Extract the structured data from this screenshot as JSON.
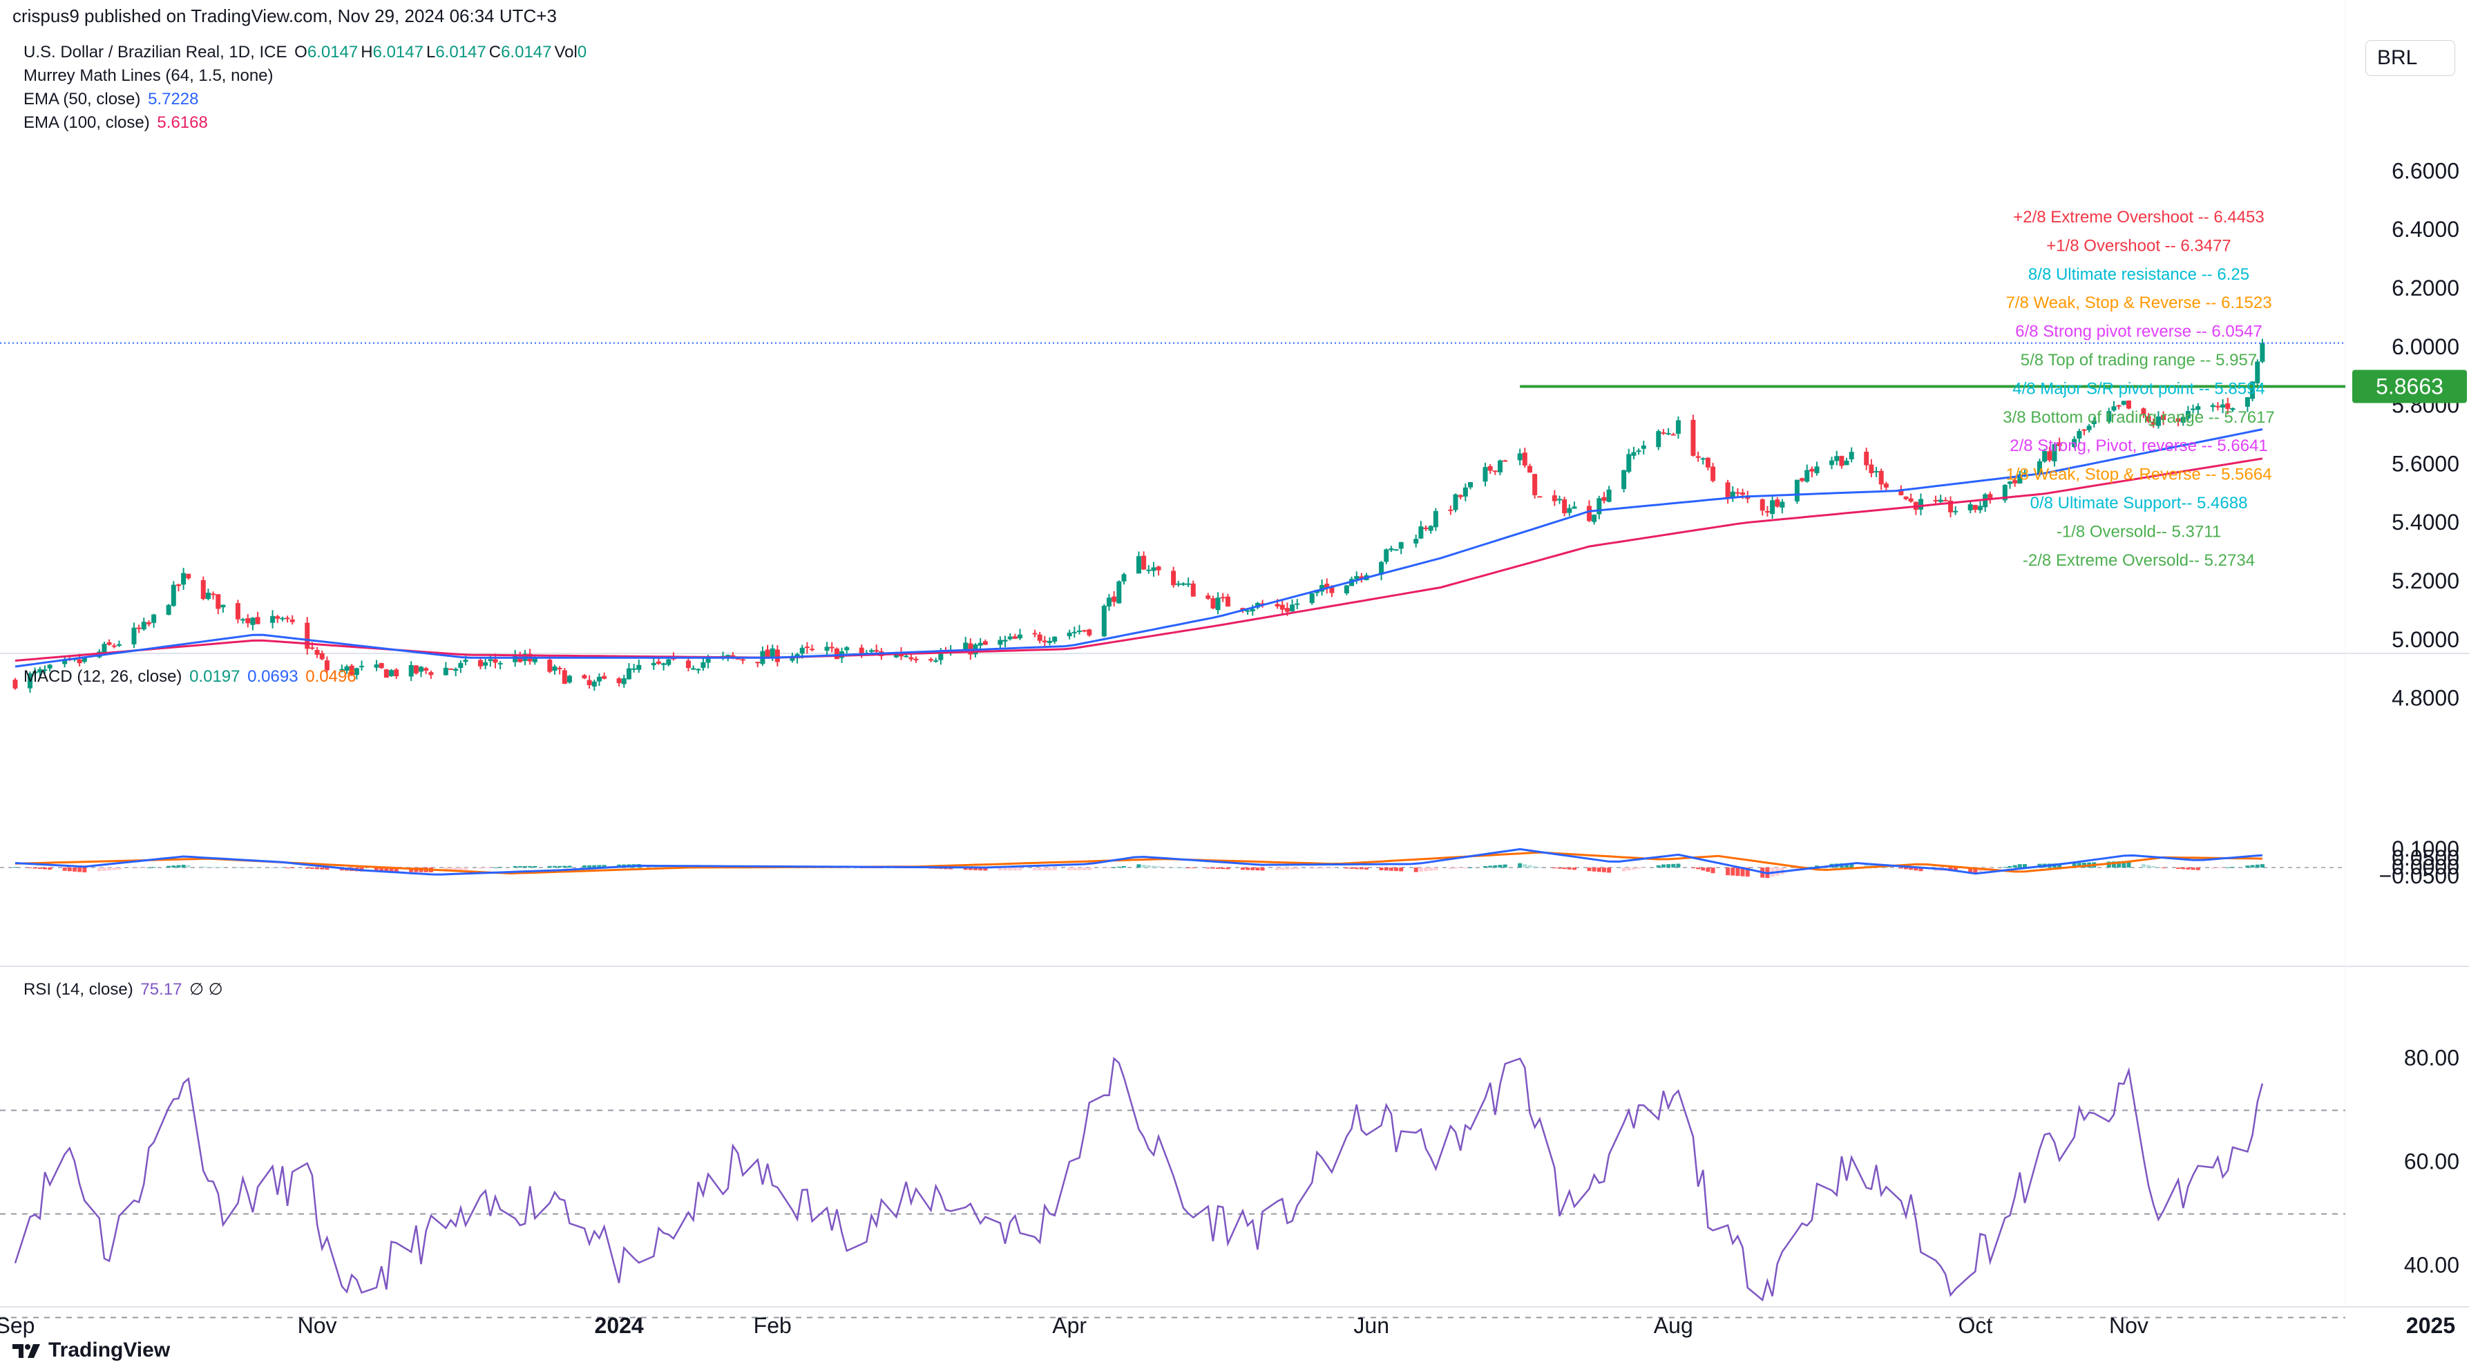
{
  "header": {
    "published": "crispus9 published on TradingView.com, Nov 29, 2024 06:34 UTC+3"
  },
  "brand": {
    "name": "TradingView",
    "icon": "tradingview-logo-icon"
  },
  "currency_button": {
    "label": "BRL"
  },
  "legend": {
    "symbol": "U.S. Dollar / Brazilian Real, 1D, ICE",
    "ohlc": [
      {
        "k": "O",
        "v": "6.0147"
      },
      {
        "k": "H",
        "v": "6.0147"
      },
      {
        "k": "L",
        "v": "6.0147"
      },
      {
        "k": "C",
        "v": "6.0147"
      },
      {
        "k": "Vol",
        "v": "0"
      }
    ],
    "murrey": "Murrey Math Lines (64, 1.5, none)",
    "ema50_label": "EMA (50, close)",
    "ema50_value": "5.7228",
    "ema100_label": "EMA (100, close)",
    "ema100_value": "5.6168",
    "macd_label": "MACD (12, 26, close)",
    "macd_values": [
      "0.0197",
      "0.0693",
      "0.0496"
    ],
    "rsi_label": "RSI (14, close)",
    "rsi_value": "75.17",
    "rsi_extra": "∅  ∅"
  },
  "colors": {
    "up": "#089981",
    "down": "#f23645",
    "ema50": "#2962ff",
    "ema100": "#e91e63",
    "macd": "#2962ff",
    "signal": "#ff6d00",
    "rsi": "#7e57c2",
    "resistance": "#089981",
    "green_line": "#2e9e3a"
  },
  "chart_data": [
    {
      "type": "candlestick",
      "title": "U.S. Dollar / Brazilian Real, 1D, ICE",
      "x_tick_labels": [
        "Sep",
        "Nov",
        "2024",
        "Feb",
        "Apr",
        "Jun",
        "Aug",
        "Oct",
        "Nov",
        "2025",
        "Feb"
      ],
      "x_tick_dates": [
        "2023-09-01",
        "2023-11-01",
        "2024-01-01",
        "2024-02-01",
        "2024-04-01",
        "2024-06-01",
        "2024-08-01",
        "2024-10-01",
        "2024-11-01",
        "2025-01-01",
        "2025-02-01"
      ],
      "y_tick_labels": [
        "4.8000",
        "5.0000",
        "5.2000",
        "5.4000",
        "5.6000",
        "5.8000",
        "6.0000",
        "6.2000",
        "6.4000",
        "6.6000"
      ],
      "ylim": [
        4.7,
        6.66
      ],
      "last_price": "5.8663",
      "close_path": [
        [
          "2023-09-01",
          4.86
        ],
        [
          "2023-09-15",
          4.93
        ],
        [
          "2023-09-28",
          5.05
        ],
        [
          "2023-10-05",
          5.21
        ],
        [
          "2023-10-15",
          5.09
        ],
        [
          "2023-10-27",
          5.05
        ],
        [
          "2023-11-03",
          4.9
        ],
        [
          "2023-11-20",
          4.89
        ],
        [
          "2023-12-01",
          4.91
        ],
        [
          "2023-12-12",
          4.94
        ],
        [
          "2023-12-26",
          4.84
        ],
        [
          "2024-01-05",
          4.9
        ],
        [
          "2024-01-20",
          4.93
        ],
        [
          "2024-02-10",
          4.96
        ],
        [
          "2024-03-05",
          4.95
        ],
        [
          "2024-03-25",
          5.01
        ],
        [
          "2024-04-05",
          5.04
        ],
        [
          "2024-04-15",
          5.27
        ],
        [
          "2024-04-30",
          5.13
        ],
        [
          "2024-05-15",
          5.11
        ],
        [
          "2024-05-31",
          5.24
        ],
        [
          "2024-06-15",
          5.43
        ],
        [
          "2024-06-30",
          5.66
        ],
        [
          "2024-07-05",
          5.48
        ],
        [
          "2024-07-15",
          5.43
        ],
        [
          "2024-07-25",
          5.66
        ],
        [
          "2024-08-02",
          5.73
        ],
        [
          "2024-08-10",
          5.52
        ],
        [
          "2024-08-20",
          5.45
        ],
        [
          "2024-08-31",
          5.62
        ],
        [
          "2024-09-07",
          5.62
        ],
        [
          "2024-09-18",
          5.47
        ],
        [
          "2024-09-30",
          5.44
        ],
        [
          "2024-10-07",
          5.53
        ],
        [
          "2024-10-20",
          5.68
        ],
        [
          "2024-10-31",
          5.8
        ],
        [
          "2024-11-05",
          5.74
        ],
        [
          "2024-11-15",
          5.78
        ],
        [
          "2024-11-25",
          5.82
        ],
        [
          "2024-11-28",
          6.01
        ]
      ],
      "ema_50_path": [
        [
          "2023-09-01",
          4.91
        ],
        [
          "2023-10-20",
          5.02
        ],
        [
          "2023-12-01",
          4.94
        ],
        [
          "2024-02-01",
          4.94
        ],
        [
          "2024-04-01",
          4.98
        ],
        [
          "2024-05-01",
          5.08
        ],
        [
          "2024-06-15",
          5.28
        ],
        [
          "2024-07-15",
          5.44
        ],
        [
          "2024-08-15",
          5.49
        ],
        [
          "2024-09-15",
          5.51
        ],
        [
          "2024-10-15",
          5.57
        ],
        [
          "2024-11-28",
          5.72
        ]
      ],
      "ema_100_path": [
        [
          "2023-09-01",
          4.93
        ],
        [
          "2023-10-20",
          5.0
        ],
        [
          "2023-12-01",
          4.95
        ],
        [
          "2024-02-01",
          4.94
        ],
        [
          "2024-04-01",
          4.97
        ],
        [
          "2024-05-01",
          5.05
        ],
        [
          "2024-06-15",
          5.18
        ],
        [
          "2024-07-15",
          5.32
        ],
        [
          "2024-08-15",
          5.4
        ],
        [
          "2024-09-15",
          5.45
        ],
        [
          "2024-10-15",
          5.5
        ],
        [
          "2024-11-28",
          5.62
        ]
      ],
      "horizontal_line": {
        "value": 5.8663,
        "from": "2024-07-01",
        "to": "2024-12-31"
      },
      "murrey_levels": [
        {
          "label": "+2/8 Extreme Overshoot --",
          "value": "6.4453",
          "color": "#f23645"
        },
        {
          "label": "+1/8 Overshoot --",
          "value": "6.3477",
          "color": "#f23645"
        },
        {
          "label": "8/8 Ultimate resistance --",
          "value": "6.25",
          "color": "#00bcd4"
        },
        {
          "label": "7/8 Weak, Stop & Reverse --",
          "value": "6.1523",
          "color": "#ff9800"
        },
        {
          "label": "6/8 Strong pivot reverse --",
          "value": "6.0547",
          "color": "#e040fb"
        },
        {
          "label": "5/8 Top of trading range --",
          "value": "5.957",
          "color": "#4caf50"
        },
        {
          "label": "4/8 Major S/R pivot point --",
          "value": "5.8594",
          "color": "#00bcd4"
        },
        {
          "label": "3/8 Bottom of trading range --",
          "value": "5.7617",
          "color": "#4caf50"
        },
        {
          "label": "2/8 Strong, Pivot, reverse --",
          "value": "5.6641",
          "color": "#e040fb"
        },
        {
          "label": "1/8 Weak, Stop & Reverse --",
          "value": "5.5664",
          "color": "#ff9800"
        },
        {
          "label": "0/8 Ultimate Support--",
          "value": "5.4688",
          "color": "#00bcd4"
        },
        {
          "label": "-1/8 Oversold--",
          "value": "5.3711",
          "color": "#4caf50"
        },
        {
          "label": "-2/8 Extreme Oversold--",
          "value": "5.2734",
          "color": "#4caf50"
        }
      ]
    },
    {
      "type": "line",
      "title": "MACD (12, 26, close)",
      "y_tick_labels": [
        "0.1000",
        "0.0500",
        "0.0000",
        "−0.0500"
      ],
      "ylim": [
        -0.052,
        0.112
      ],
      "macd_path": [
        [
          "2023-09-01",
          0.025
        ],
        [
          "2023-09-15",
          0.005
        ],
        [
          "2023-10-05",
          0.062
        ],
        [
          "2023-10-25",
          0.03
        ],
        [
          "2023-11-10",
          -0.015
        ],
        [
          "2023-11-25",
          -0.04
        ],
        [
          "2023-12-20",
          -0.015
        ],
        [
          "2024-01-05",
          0.01
        ],
        [
          "2024-02-10",
          0.005
        ],
        [
          "2024-03-15",
          0.0
        ],
        [
          "2024-04-05",
          0.02
        ],
        [
          "2024-04-15",
          0.062
        ],
        [
          "2024-05-10",
          0.015
        ],
        [
          "2024-06-10",
          0.02
        ],
        [
          "2024-07-01",
          0.103
        ],
        [
          "2024-07-20",
          0.03
        ],
        [
          "2024-08-02",
          0.072
        ],
        [
          "2024-08-20",
          -0.032
        ],
        [
          "2024-09-07",
          0.025
        ],
        [
          "2024-09-25",
          -0.01
        ],
        [
          "2024-10-01",
          -0.034
        ],
        [
          "2024-10-20",
          0.025
        ],
        [
          "2024-11-01",
          0.07
        ],
        [
          "2024-11-15",
          0.04
        ],
        [
          "2024-11-28",
          0.069
        ]
      ],
      "signal_path": [
        [
          "2023-09-01",
          0.022
        ],
        [
          "2023-10-10",
          0.05
        ],
        [
          "2023-11-15",
          0.0
        ],
        [
          "2023-12-10",
          -0.033
        ],
        [
          "2024-01-15",
          0.0
        ],
        [
          "2024-03-01",
          0.005
        ],
        [
          "2024-04-20",
          0.048
        ],
        [
          "2024-05-25",
          0.02
        ],
        [
          "2024-07-05",
          0.085
        ],
        [
          "2024-07-30",
          0.045
        ],
        [
          "2024-08-10",
          0.065
        ],
        [
          "2024-08-31",
          -0.015
        ],
        [
          "2024-09-20",
          0.02
        ],
        [
          "2024-10-10",
          -0.025
        ],
        [
          "2024-10-31",
          0.03
        ],
        [
          "2024-11-08",
          0.057
        ],
        [
          "2024-11-28",
          0.05
        ]
      ]
    },
    {
      "type": "line",
      "title": "RSI (14, close)",
      "y_tick_labels": [
        "80.00",
        "60.00",
        "40.00"
      ],
      "ylim": [
        26,
        83
      ],
      "bands": [
        70,
        50,
        30
      ],
      "rsi_path": [
        [
          "2023-09-01",
          45
        ],
        [
          "2023-09-12",
          63
        ],
        [
          "2023-09-20",
          42
        ],
        [
          "2023-10-05",
          77
        ],
        [
          "2023-10-12",
          52
        ],
        [
          "2023-10-30",
          57
        ],
        [
          "2023-11-06",
          32
        ],
        [
          "2023-11-20",
          44
        ],
        [
          "2023-12-05",
          50
        ],
        [
          "2023-12-20",
          54
        ],
        [
          "2024-01-03",
          38
        ],
        [
          "2024-01-25",
          60
        ],
        [
          "2024-02-15",
          47
        ],
        [
          "2024-03-05",
          54
        ],
        [
          "2024-03-25",
          45
        ],
        [
          "2024-04-10",
          78
        ],
        [
          "2024-04-25",
          50
        ],
        [
          "2024-05-12",
          47
        ],
        [
          "2024-05-31",
          69
        ],
        [
          "2024-06-15",
          61
        ],
        [
          "2024-07-01",
          79
        ],
        [
          "2024-07-10",
          50
        ],
        [
          "2024-07-22",
          65
        ],
        [
          "2024-08-02",
          72
        ],
        [
          "2024-08-10",
          45
        ],
        [
          "2024-08-20",
          37
        ],
        [
          "2024-09-02",
          58
        ],
        [
          "2024-09-15",
          55
        ],
        [
          "2024-09-25",
          37
        ],
        [
          "2024-10-05",
          46
        ],
        [
          "2024-10-15",
          62
        ],
        [
          "2024-10-30",
          71
        ],
        [
          "2024-11-01",
          77
        ],
        [
          "2024-11-06",
          50
        ],
        [
          "2024-11-16",
          58
        ],
        [
          "2024-11-23",
          59
        ],
        [
          "2024-11-28",
          75
        ]
      ]
    }
  ]
}
